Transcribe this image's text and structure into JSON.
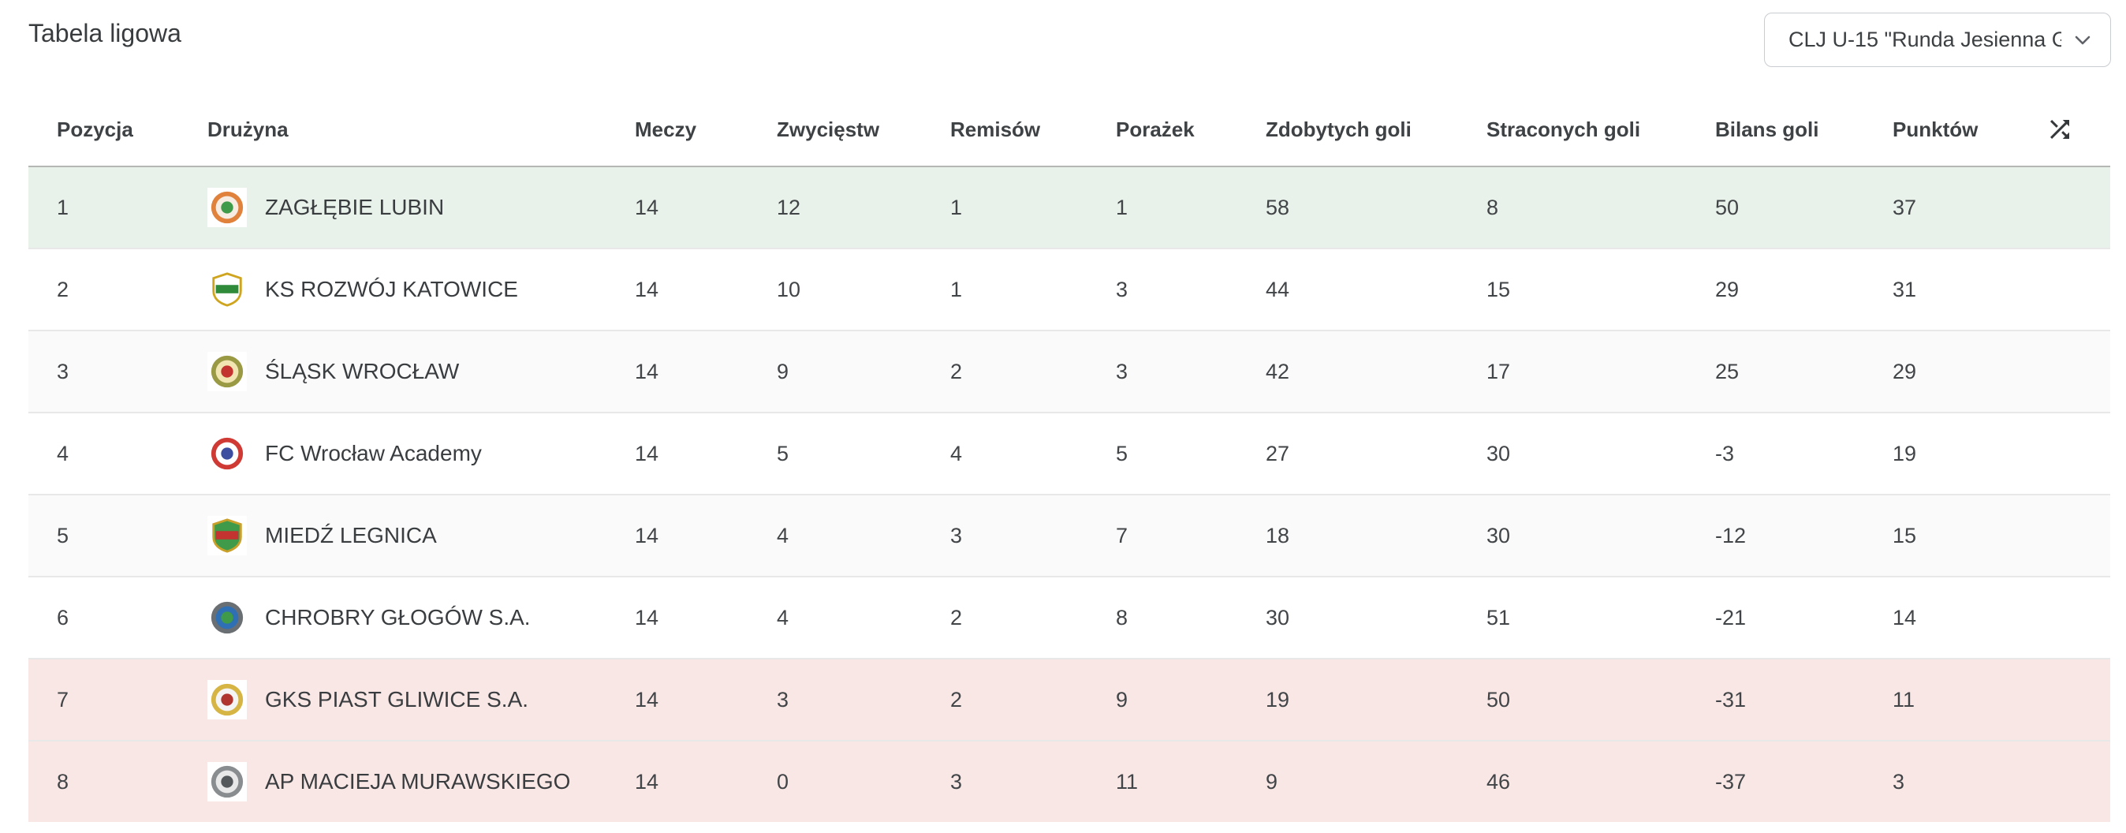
{
  "page": {
    "title": "Tabela ligowa"
  },
  "filter": {
    "value": "CLJ U-15 \"Runda Jesienna G…",
    "icon": "chevron-down-icon"
  },
  "colors": {
    "promotion_bg": "#e9f2ea",
    "relegation_bg": "#f9e7e5",
    "zebra_bg": "#fafafa",
    "white_bg": "#ffffff",
    "header_divider": "#b4b7b4",
    "row_divider": "#e8e8e8",
    "text": "#3c4043",
    "dropdown_border": "#c9ccd0"
  },
  "table": {
    "columns": [
      "Pozycja",
      "Drużyna",
      "Meczy",
      "Zwycięstw",
      "Remisów",
      "Porażek",
      "Zdobytych goli",
      "Straconych goli",
      "Bilans goli",
      "Punktów"
    ],
    "sort_icon": "shuffle-icon",
    "rows": [
      {
        "position": 1,
        "team": "ZAGŁĘBIE LUBIN",
        "matches": 14,
        "wins": 12,
        "draws": 1,
        "losses": 1,
        "goals_for": 58,
        "goals_against": 8,
        "goal_diff": 50,
        "points": 37,
        "highlight": "promotion",
        "logo": {
          "shape": "circle",
          "colors": [
            "#e0823c",
            "#f6ece2",
            "#3f9b4a"
          ]
        }
      },
      {
        "position": 2,
        "team": "KS ROZWÓJ KATOWICE",
        "matches": 14,
        "wins": 10,
        "draws": 1,
        "losses": 3,
        "goals_for": 44,
        "goals_against": 15,
        "goal_diff": 29,
        "points": 31,
        "highlight": null,
        "logo": {
          "shape": "shield",
          "colors": [
            "#cfa51f",
            "#ffffff",
            "#2f8a3a"
          ]
        }
      },
      {
        "position": 3,
        "team": "ŚLĄSK WROCŁAW",
        "matches": 14,
        "wins": 9,
        "draws": 2,
        "losses": 3,
        "goals_for": 42,
        "goals_against": 17,
        "goal_diff": 25,
        "points": 29,
        "highlight": null,
        "logo": {
          "shape": "circle",
          "colors": [
            "#9a9a45",
            "#f1e6b2",
            "#c3332f"
          ]
        }
      },
      {
        "position": 4,
        "team": "FC Wrocław Academy",
        "matches": 14,
        "wins": 5,
        "draws": 4,
        "losses": 5,
        "goals_for": 27,
        "goals_against": 30,
        "goal_diff": -3,
        "points": 19,
        "highlight": null,
        "logo": {
          "shape": "circle",
          "colors": [
            "#cf3a35",
            "#ffffff",
            "#3d4ea0"
          ]
        }
      },
      {
        "position": 5,
        "team": "MIEDŹ LEGNICA",
        "matches": 14,
        "wins": 4,
        "draws": 3,
        "losses": 7,
        "goals_for": 18,
        "goals_against": 30,
        "goal_diff": -12,
        "points": 15,
        "highlight": null,
        "logo": {
          "shape": "shield",
          "colors": [
            "#c8a02a",
            "#3f9b4a",
            "#c3332f"
          ]
        }
      },
      {
        "position": 6,
        "team": "CHROBRY GŁOGÓW S.A.",
        "matches": 14,
        "wins": 4,
        "draws": 2,
        "losses": 8,
        "goals_for": 30,
        "goals_against": 51,
        "goal_diff": -21,
        "points": 14,
        "highlight": null,
        "logo": {
          "shape": "circle",
          "colors": [
            "#6a6f74",
            "#2f6fb4",
            "#3f9b4a"
          ]
        }
      },
      {
        "position": 7,
        "team": "GKS PIAST GLIWICE S.A.",
        "matches": 14,
        "wins": 3,
        "draws": 2,
        "losses": 9,
        "goals_for": 19,
        "goals_against": 50,
        "goal_diff": -31,
        "points": 11,
        "highlight": "relegation",
        "logo": {
          "shape": "circle",
          "colors": [
            "#d6b545",
            "#f4f4f4",
            "#b0352f"
          ]
        }
      },
      {
        "position": 8,
        "team": "AP MACIEJA MURAWSKIEGO",
        "matches": 14,
        "wins": 0,
        "draws": 3,
        "losses": 11,
        "goals_for": 9,
        "goals_against": 46,
        "goal_diff": -37,
        "points": 3,
        "highlight": "relegation",
        "logo": {
          "shape": "circle",
          "colors": [
            "#8a8d90",
            "#e8e8e8",
            "#55585b"
          ]
        }
      }
    ]
  }
}
